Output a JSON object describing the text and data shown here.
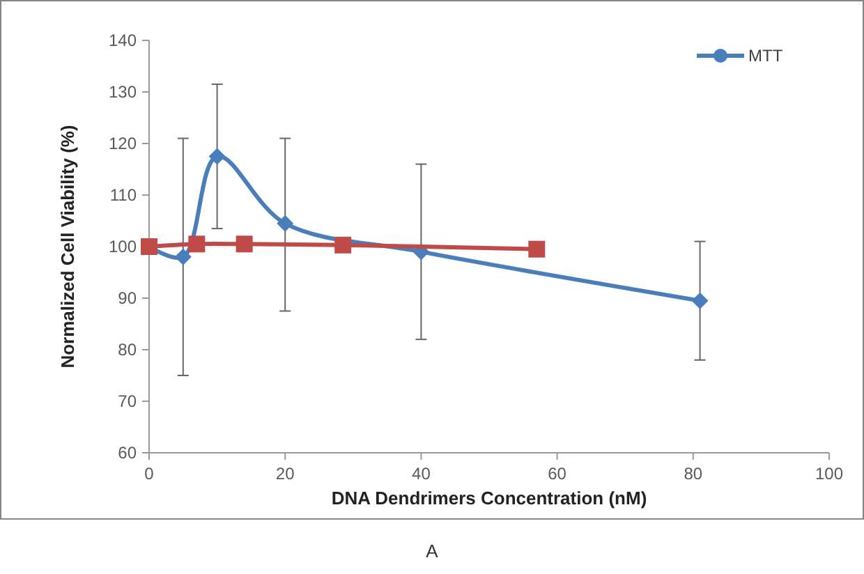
{
  "chart_data": {
    "type": "line",
    "xlabel": "DNA Dendrimers Concentration (nM)",
    "ylabel": "Normalized Cell Viability (%)",
    "xlim": [
      0,
      100
    ],
    "xticks": [
      0,
      20,
      40,
      60,
      80,
      100
    ],
    "ylim": [
      60,
      140
    ],
    "yticks": [
      60,
      70,
      80,
      90,
      100,
      110,
      120,
      130,
      140
    ],
    "grid": false,
    "legend": "top right",
    "annotations": [
      "A"
    ],
    "series": [
      {
        "name": "MTT",
        "color": "#4a7ebb",
        "marker": "diamond",
        "x": [
          0,
          5,
          10,
          20,
          40,
          81
        ],
        "values": [
          100,
          98,
          117.5,
          104.5,
          99,
          89.5
        ],
        "errors": [
          null,
          [
            75,
            121
          ],
          [
            103.5,
            131.5
          ],
          [
            87.5,
            121
          ],
          [
            82,
            116
          ],
          [
            78,
            101
          ]
        ]
      },
      {
        "color": "#be4b48",
        "marker": "square",
        "x": [
          0,
          7,
          14,
          28.5,
          57
        ],
        "values": [
          100,
          100.5,
          100.5,
          100.3,
          99.5
        ]
      }
    ]
  }
}
